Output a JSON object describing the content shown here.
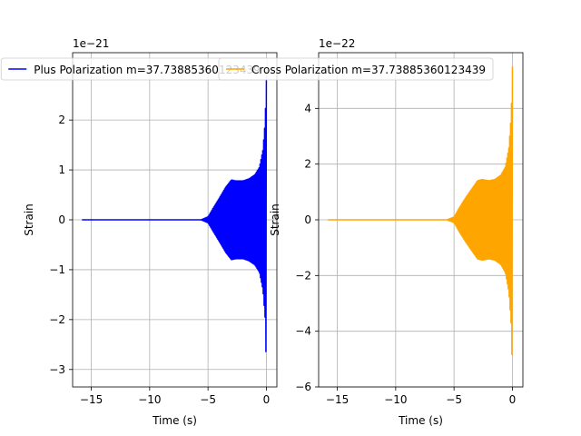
{
  "chart_data": [
    {
      "type": "line",
      "title": "",
      "xlabel": "Time (s)",
      "ylabel": "Strain",
      "offset_text": "1e−21",
      "xlim": [
        -16.6,
        0.9
      ],
      "ylim": [
        -3.35,
        3.35
      ],
      "xticks": [
        -15,
        -10,
        -5,
        0
      ],
      "xtick_labels": [
        "−15",
        "−10",
        "−5",
        "0"
      ],
      "yticks": [
        -3,
        -2,
        -1,
        0,
        1,
        2
      ],
      "ytick_labels": [
        "−3",
        "−2",
        "−1",
        "0",
        "1",
        "2"
      ],
      "grid": true,
      "legend_position": "top-center",
      "series": [
        {
          "name": "Plus Polarization m=37.73885360123439",
          "color": "#0000ff",
          "signal": {
            "t_start": -15.8,
            "t_end": 0.0,
            "onset": -5.6,
            "envelope": [
              [
                -5.6,
                0.0
              ],
              [
                -5.0,
                0.06
              ],
              [
                -4.6,
                0.22
              ],
              [
                -4.0,
                0.45
              ],
              [
                -3.5,
                0.65
              ],
              [
                -3.0,
                0.8
              ],
              [
                -2.6,
                0.78
              ],
              [
                -2.0,
                0.78
              ],
              [
                -1.5,
                0.82
              ],
              [
                -1.0,
                0.9
              ],
              [
                -0.6,
                1.05
              ],
              [
                -0.3,
                1.4
              ],
              [
                -0.1,
                2.0
              ],
              [
                0.0,
                3.05
              ]
            ]
          }
        }
      ]
    },
    {
      "type": "line",
      "title": "",
      "xlabel": "Time (s)",
      "ylabel": "Strain",
      "offset_text": "1e−22",
      "xlim": [
        -16.6,
        0.9
      ],
      "ylim": [
        -6.0,
        6.0
      ],
      "xticks": [
        -15,
        -10,
        -5,
        0
      ],
      "xtick_labels": [
        "−15",
        "−10",
        "−5",
        "0"
      ],
      "yticks": [
        -6,
        -4,
        -2,
        0,
        2,
        4
      ],
      "ytick_labels": [
        "−6",
        "−4",
        "−2",
        "0",
        "2",
        "4"
      ],
      "grid": true,
      "legend_position": "top-center",
      "series": [
        {
          "name": "Cross Polarization m=37.73885360123439",
          "color": "#ffa500",
          "signal": {
            "t_start": -15.8,
            "t_end": 0.0,
            "onset": -5.6,
            "envelope": [
              [
                -5.6,
                0.0
              ],
              [
                -5.0,
                0.1
              ],
              [
                -4.6,
                0.4
              ],
              [
                -4.0,
                0.8
              ],
              [
                -3.5,
                1.1
              ],
              [
                -3.0,
                1.4
              ],
              [
                -2.6,
                1.45
              ],
              [
                -2.0,
                1.4
              ],
              [
                -1.5,
                1.45
              ],
              [
                -1.0,
                1.6
              ],
              [
                -0.6,
                1.9
              ],
              [
                -0.3,
                2.6
              ],
              [
                -0.1,
                3.8
              ],
              [
                0.0,
                5.5
              ]
            ]
          }
        }
      ]
    }
  ]
}
